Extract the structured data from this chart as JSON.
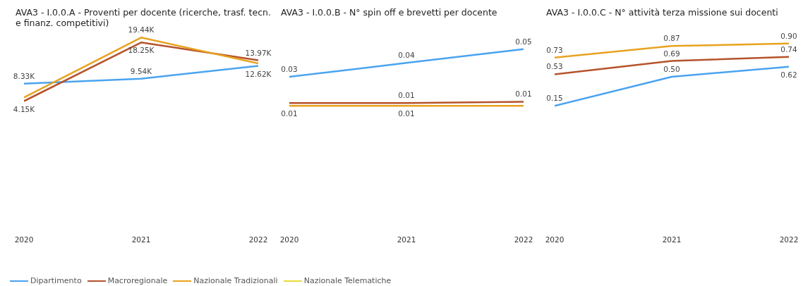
{
  "chart_data": [
    {
      "type": "line",
      "title": "AVA3 - I.0.0.A - Proventi per docente (ricerche, trasf. tecn. e finanz. competitivi)",
      "categories": [
        "2020",
        "2021",
        "2022"
      ],
      "tick_labels": "x",
      "legend": "bottom",
      "marker": "none",
      "line_style": "solid",
      "series": [
        {
          "name": "Dipartimento",
          "color": "#4aa3f0",
          "values": [
            8.33,
            9.54,
            12.62
          ],
          "value_labels": [
            "8.33K",
            "9.54K",
            "12.62K"
          ]
        },
        {
          "name": "Macroregionale",
          "color": "#b5532b",
          "values": [
            4.15,
            18.25,
            13.97
          ],
          "value_labels": [
            "4.15K",
            "18.25K",
            "13.97K"
          ]
        },
        {
          "name": "Nazionale Tradizionali",
          "color": "#e8a21f",
          "values": [
            5.0,
            19.44,
            13.2
          ],
          "value_labels": [
            null,
            "19.44K",
            null
          ]
        },
        {
          "name": "Nazionale Telematiche",
          "color": "#e8dc3a",
          "values": [
            null,
            null,
            null
          ]
        }
      ]
    },
    {
      "type": "line",
      "title": "AVA3 - I.0.0.B - N° spin off e brevetti per docente",
      "categories": [
        "2020",
        "2021",
        "2022"
      ],
      "tick_labels": "x",
      "marker": "none",
      "line_style": "solid",
      "series": [
        {
          "color": "#4aa3f0",
          "values": [
            0.03,
            0.04,
            0.05
          ],
          "value_labels": [
            "0.03",
            "0.04",
            "0.05"
          ]
        },
        {
          "color": "#b5532b",
          "values": [
            0.011,
            0.011,
            0.012
          ],
          "value_labels": [
            null,
            "0.01",
            "0.01"
          ]
        },
        {
          "color": "#e8a21f",
          "values": [
            0.009,
            0.009,
            0.009
          ],
          "value_labels": [
            "0.01",
            "0.01",
            null
          ]
        }
      ]
    },
    {
      "type": "line",
      "title": "AVA3 - I.0.0.C - N° attività terza missione sui docenti",
      "categories": [
        "2020",
        "2021",
        "2022"
      ],
      "tick_labels": "x",
      "marker": "none",
      "line_style": "solid",
      "series": [
        {
          "color": "#4aa3f0",
          "values": [
            0.15,
            0.5,
            0.62
          ],
          "value_labels": [
            "0.15",
            "0.50",
            "0.62"
          ]
        },
        {
          "color": "#b5532b",
          "values": [
            0.53,
            0.69,
            0.74
          ],
          "value_labels": [
            "0.53",
            "0.69",
            "0.74"
          ]
        },
        {
          "color": "#e8a21f",
          "values": [
            0.73,
            0.87,
            0.9
          ],
          "value_labels": [
            "0.73",
            "0.87",
            "0.90"
          ]
        }
      ]
    }
  ]
}
